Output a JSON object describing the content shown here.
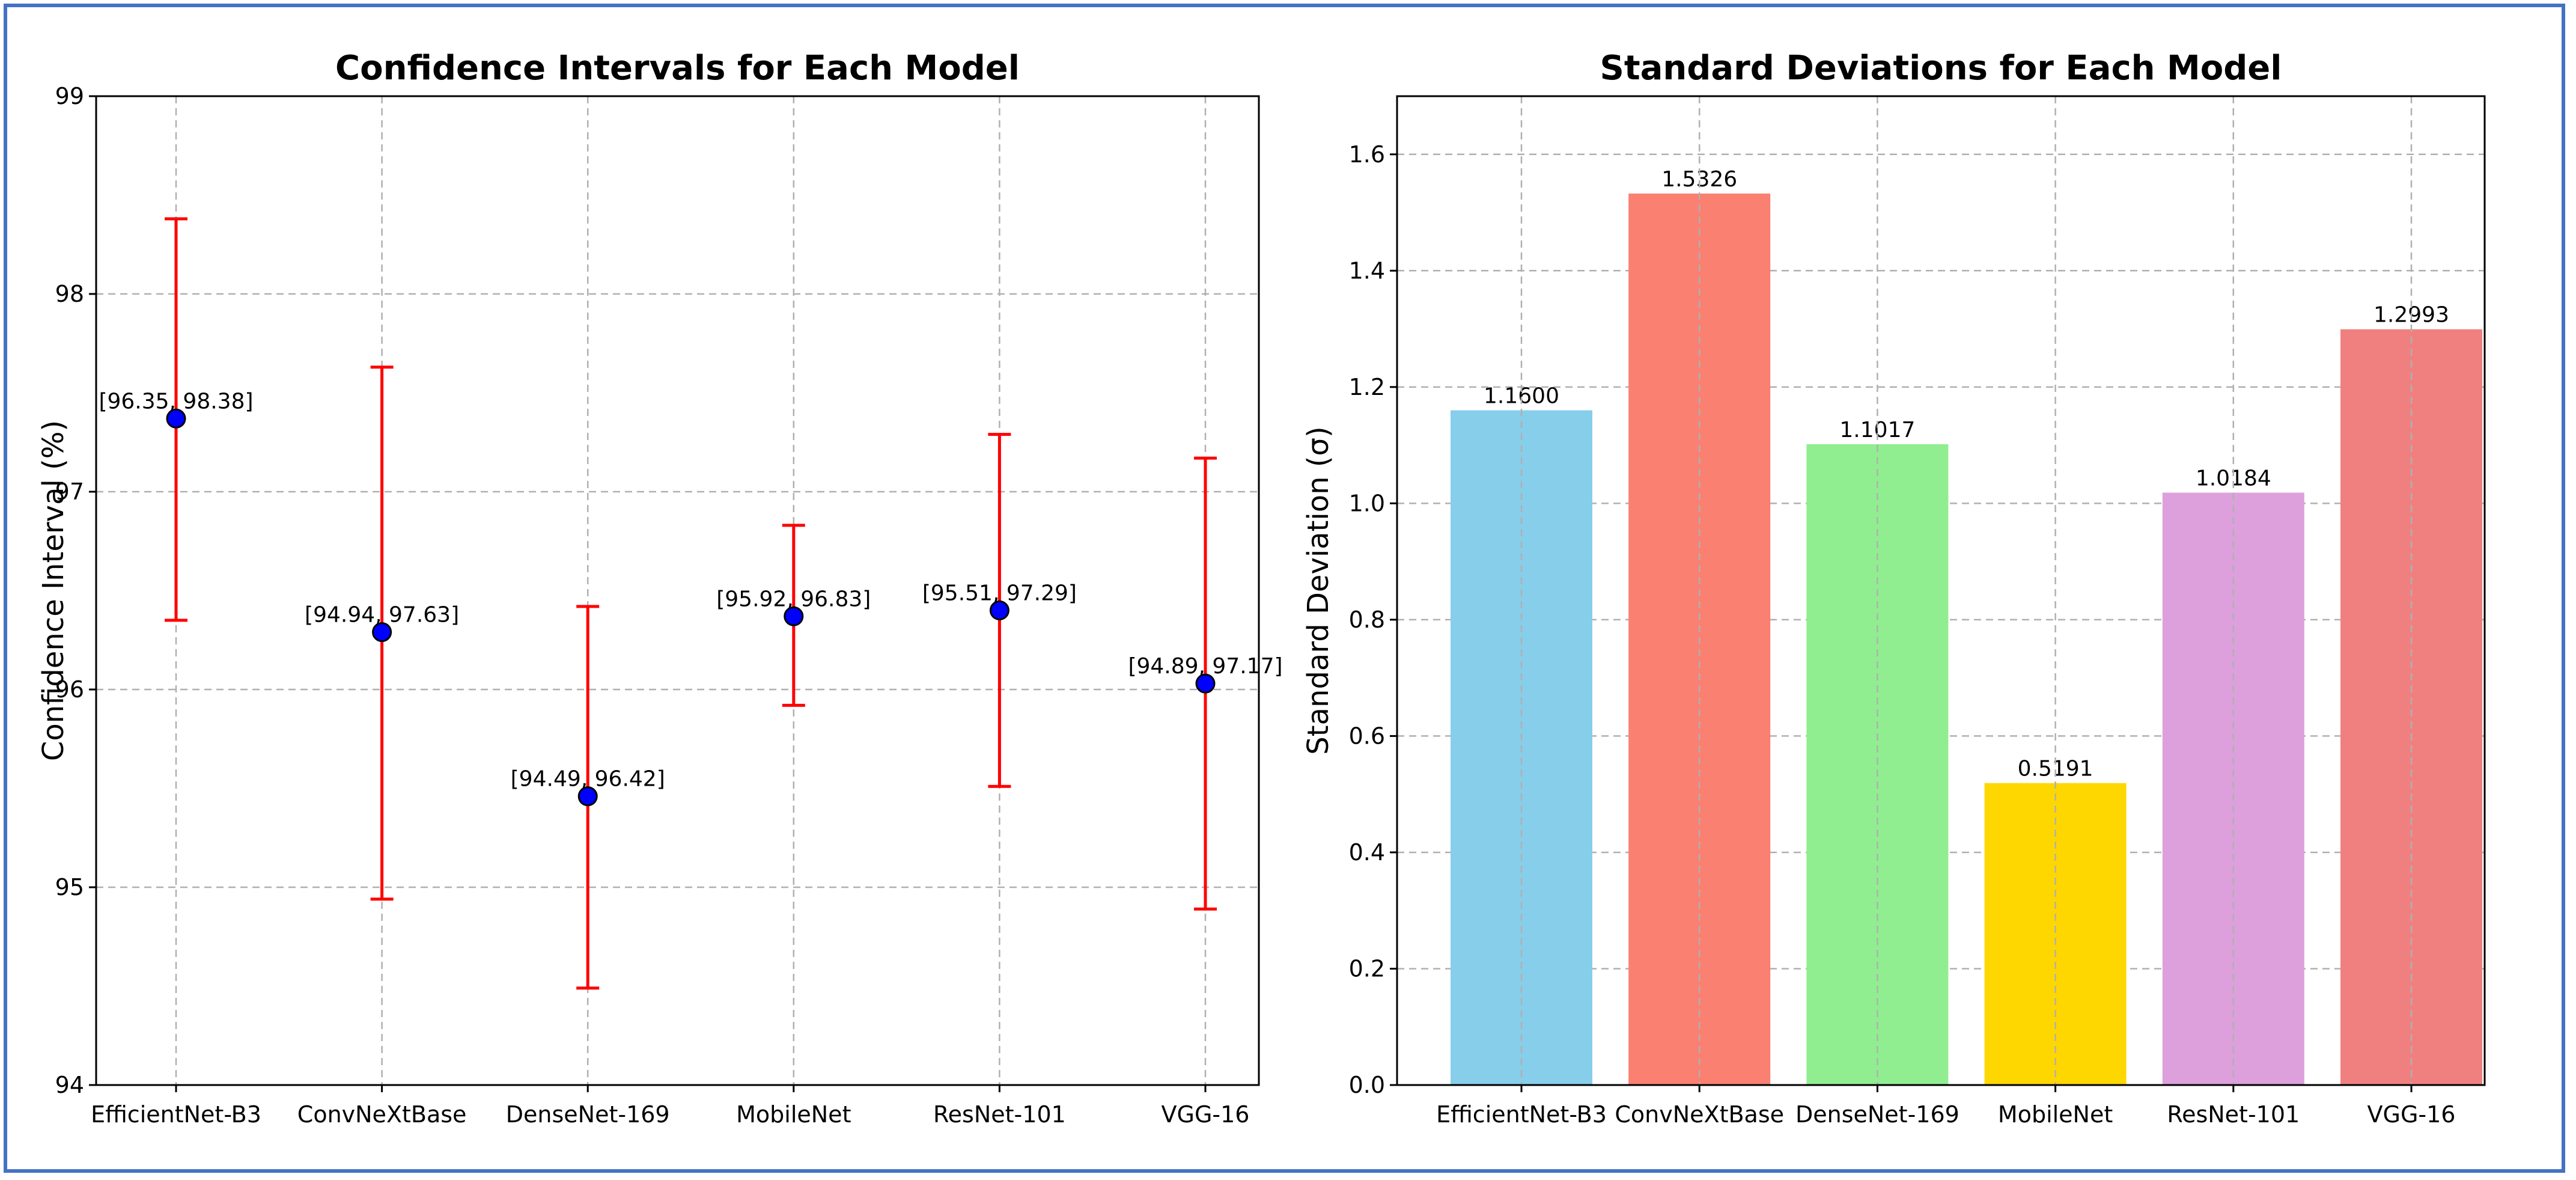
{
  "colors": {
    "frame_border": "#4472c4",
    "errorbar": "#ff0000",
    "marker_fill": "#0000ff",
    "marker_edge": "#000000",
    "grid": "#b0b0b0"
  },
  "chart_data": [
    {
      "type": "errorbar",
      "title": "Confidence Intervals for Each Model",
      "xlabel": "",
      "ylabel": "Confidence Interval (%)",
      "ylim": [
        94,
        99
      ],
      "yticks": [
        94,
        95,
        96,
        97,
        98,
        99
      ],
      "grid": true,
      "categories": [
        "EfficientNet-B3",
        "ConvNeXtBase",
        "DenseNet-169",
        "MobileNet",
        "ResNet-101",
        "VGG-16"
      ],
      "means": [
        97.37,
        96.29,
        95.46,
        96.37,
        96.4,
        96.03
      ],
      "lower": [
        96.35,
        94.94,
        94.49,
        95.92,
        95.51,
        94.89
      ],
      "upper": [
        98.38,
        97.63,
        96.42,
        96.83,
        97.29,
        97.17
      ],
      "labels": [
        "[96.35, 98.38]",
        "[94.94, 97.63]",
        "[94.49, 96.42]",
        "[95.92, 96.83]",
        "[95.51, 97.29]",
        "[94.89, 97.17]"
      ]
    },
    {
      "type": "bar",
      "title": "Standard Deviations for Each Model",
      "xlabel": "",
      "ylabel": "Standard Deviation (σ)",
      "ylim": [
        0,
        1.7
      ],
      "yticks": [
        0.0,
        0.2,
        0.4,
        0.6,
        0.8,
        1.0,
        1.2,
        1.4,
        1.6
      ],
      "grid": true,
      "categories": [
        "EfficientNet-B3",
        "ConvNeXtBase",
        "DenseNet-169",
        "MobileNet",
        "ResNet-101",
        "VGG-16"
      ],
      "values": [
        1.16,
        1.5326,
        1.1017,
        0.5191,
        1.0184,
        1.2993
      ],
      "labels": [
        "1.1600",
        "1.5326",
        "1.1017",
        "0.5191",
        "1.0184",
        "1.2993"
      ],
      "bar_colors": [
        "#87ceeb",
        "#fa8072",
        "#90ee90",
        "#ffd700",
        "#dda0dd",
        "#f08080"
      ]
    }
  ]
}
